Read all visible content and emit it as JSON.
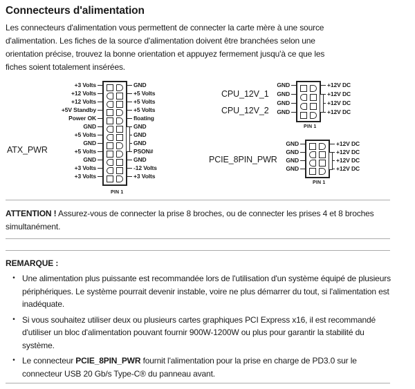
{
  "title": "Connecteurs d'alimentation",
  "intro": {
    "lines": [
      [
        [
          "Les connecteurs d'alimentation vous permettent de connecter la carte mère à une source",
          0
        ]
      ],
      [
        [
          "d'alimentation. Les fiches de la source d'alimentation doivent être branchées selon une",
          0
        ]
      ],
      [
        [
          "orientation précise, trouvez la bonne orientation et appuyez fermement jusqu'à ce que les",
          0
        ]
      ],
      [
        [
          "fiches soient totalement insérées.",
          0
        ]
      ]
    ]
  },
  "diagram": {
    "atx": {
      "name": "ATX_PWR",
      "pin1": "PIN 1",
      "rows": [
        {
          "l": "+3 Volts",
          "r": "GND",
          "ls": "s",
          "rs": "r"
        },
        {
          "l": "+12 Volts",
          "r": "+5 Volts",
          "ls": "r",
          "rs": "s"
        },
        {
          "l": "+12 Volts",
          "r": "+5 Volts",
          "ls": "r",
          "rs": "s"
        },
        {
          "l": "+5V Standby",
          "r": "+5 Volts",
          "ls": "s",
          "rs": "r"
        },
        {
          "l": "Power OK",
          "r": "floating",
          "ls": "s",
          "rs": "r"
        },
        {
          "l": "GND",
          "r": "GND",
          "ls": "r",
          "rs": "s"
        },
        {
          "l": "+5 Volts",
          "r": "GND",
          "ls": "r",
          "rs": "s"
        },
        {
          "l": "GND",
          "r": "GND",
          "ls": "s",
          "rs": "r"
        },
        {
          "l": "+5 Volts",
          "r": "PSON#",
          "ls": "s",
          "rs": "r"
        },
        {
          "l": "GND",
          "r": "GND",
          "ls": "r",
          "rs": "s"
        },
        {
          "l": "+3 Volts",
          "r": "-12 Volts",
          "ls": "r",
          "rs": "s"
        },
        {
          "l": "+3 Volts",
          "r": "+3 Volts",
          "ls": "s",
          "rs": "r"
        }
      ]
    },
    "cpu": {
      "names": [
        "CPU_12V_1",
        "CPU_12V_2"
      ],
      "pin1": "PIN 1",
      "rows": [
        {
          "l": "GND",
          "r": "+12V DC",
          "ls": "s",
          "rs": "r"
        },
        {
          "l": "GND",
          "r": "+12V DC",
          "ls": "r",
          "rs": "s"
        },
        {
          "l": "GND",
          "r": "+12V DC",
          "ls": "r",
          "rs": "s"
        },
        {
          "l": "GND",
          "r": "+12V DC",
          "ls": "s",
          "rs": "r"
        }
      ]
    },
    "pcie": {
      "name": "PCIE_8PIN_PWR",
      "pin1": "PIN 1",
      "rows": [
        {
          "l": "GND",
          "r": "+12V DC",
          "ls": "s",
          "rs": "r"
        },
        {
          "l": "GND",
          "r": "+12V DC",
          "ls": "r",
          "rs": "s"
        },
        {
          "l": "GND",
          "r": "+12V DC",
          "ls": "r",
          "rs": "s"
        },
        {
          "l": "GND",
          "r": "+12V DC",
          "ls": "s",
          "rs": "r"
        }
      ]
    }
  },
  "attention": {
    "lines": [
      [
        [
          "ATTENTION !",
          1
        ],
        [
          " Assurez-vous de connecter la prise 8 broches, ou de connecter les prises 4 et 8 broches",
          0
        ]
      ],
      [
        [
          "simultanément.",
          0
        ]
      ]
    ]
  },
  "note": {
    "label": "REMARQUE :",
    "bullet_glyph": "•",
    "bullets": [
      [
        [
          [
            "Une alimentation plus puissante est recommandée lors de l'utilisation d'un système équipé de plusieurs",
            0
          ]
        ],
        [
          [
            "périphériques. Le système pourrait devenir instable, voire ne plus démarrer du tout, si l'alimentation est",
            0
          ]
        ],
        [
          [
            "inadéquate.",
            0
          ]
        ]
      ],
      [
        [
          [
            "Si vous souhaitez utiliser deux ou plusieurs cartes graphiques PCI Express x16, il est recommandé",
            0
          ]
        ],
        [
          [
            "d'utiliser un bloc d'alimentation pouvant fournir 900W-1200W ou plus pour garantir la stabilité du",
            0
          ]
        ],
        [
          [
            "système.",
            0
          ]
        ]
      ],
      [
        [
          [
            "Le connecteur ",
            0
          ],
          [
            "PCIE_8PIN_PWR",
            1
          ],
          [
            " fournit l'alimentation pour la prise en charge de PD3.0 sur le",
            0
          ]
        ],
        [
          [
            "connecteur USB 20 Gb/s Type-C® du panneau avant.",
            0
          ]
        ]
      ]
    ]
  },
  "colors": {
    "text": "#1a1a1a",
    "rule": "#ababab",
    "diagram_line": "#222222",
    "background": "#ffffff"
  }
}
